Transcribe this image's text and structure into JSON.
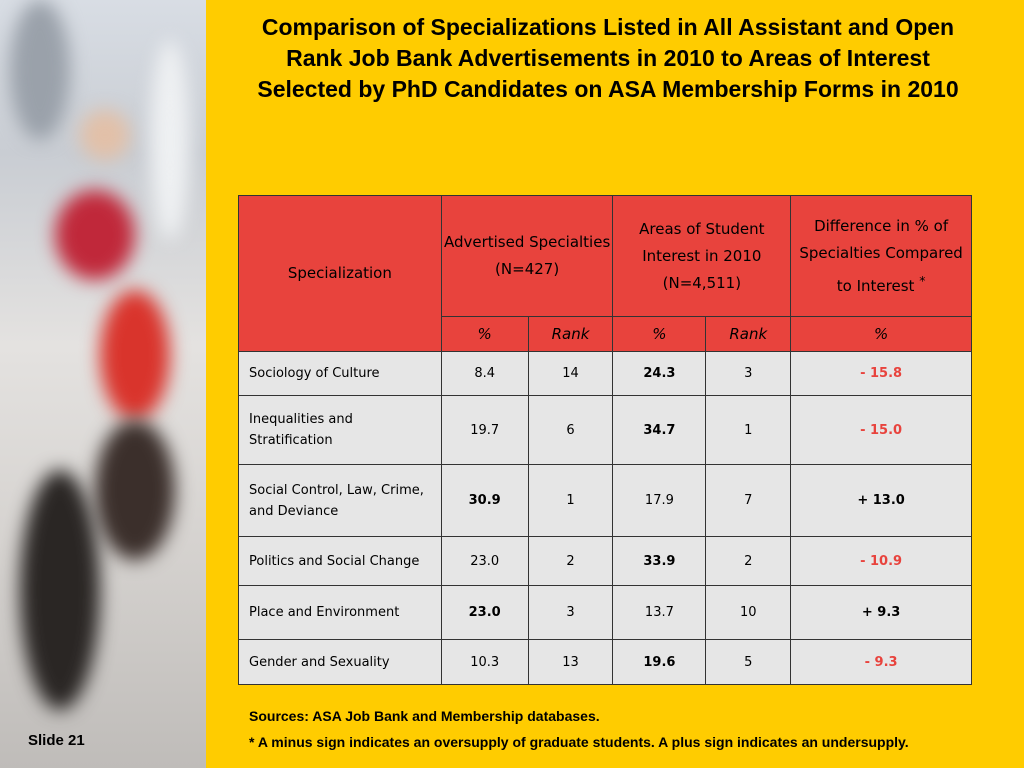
{
  "slide_label": "Slide 21",
  "title": "Comparison of Specializations Listed in All Assistant and Open Rank Job Bank Advertisements in 2010 to Areas of Interest Selected by PhD Candidates on ASA Membership Forms in 2010",
  "table": {
    "headers": {
      "specialization": "Specialization",
      "advertised": "Advertised Specialties (N=427)",
      "student": "Areas of Student Interest in 2010 (N=4,511)",
      "difference": "Difference in % of Specialties Compared to Interest",
      "difference_mark": "*"
    },
    "subheaders": [
      "%",
      "Rank",
      "%",
      "Rank",
      "%"
    ],
    "rows": [
      {
        "label": "Sociology of Culture",
        "adv_pct": "8.4",
        "adv_rank": "14",
        "stu_pct": "24.3",
        "stu_rank": "3",
        "diff": "- 15.8"
      },
      {
        "label": "Inequalities and Stratification",
        "adv_pct": "19.7",
        "adv_rank": "6",
        "stu_pct": "34.7",
        "stu_rank": "1",
        "diff": "- 15.0"
      },
      {
        "label": "Social Control, Law, Crime, and Deviance",
        "adv_pct": "30.9",
        "adv_rank": "1",
        "stu_pct": "17.9",
        "stu_rank": "7",
        "diff": "+ 13.0"
      },
      {
        "label": "Politics and Social Change",
        "adv_pct": "23.0",
        "adv_rank": "2",
        "stu_pct": "33.9",
        "stu_rank": "2",
        "diff": "- 10.9"
      },
      {
        "label": "Place and Environment",
        "adv_pct": "23.0",
        "adv_rank": "3",
        "stu_pct": "13.7",
        "stu_rank": "10",
        "diff": "+ 9.3"
      },
      {
        "label": "Gender and Sexuality",
        "adv_pct": "10.3",
        "adv_rank": "13",
        "stu_pct": "19.6",
        "stu_rank": "5",
        "diff": "- 9.3"
      }
    ]
  },
  "notes": {
    "sources": "Sources: ASA Job Bank and Membership databases.",
    "footnote": "* A minus sign indicates an oversupply of graduate students. A plus sign indicates an undersupply."
  },
  "colors": {
    "background": "#ffcc00",
    "header_red": "#e8433d",
    "cell_gray": "#e6e6e6",
    "negative_red": "#e8433d"
  }
}
